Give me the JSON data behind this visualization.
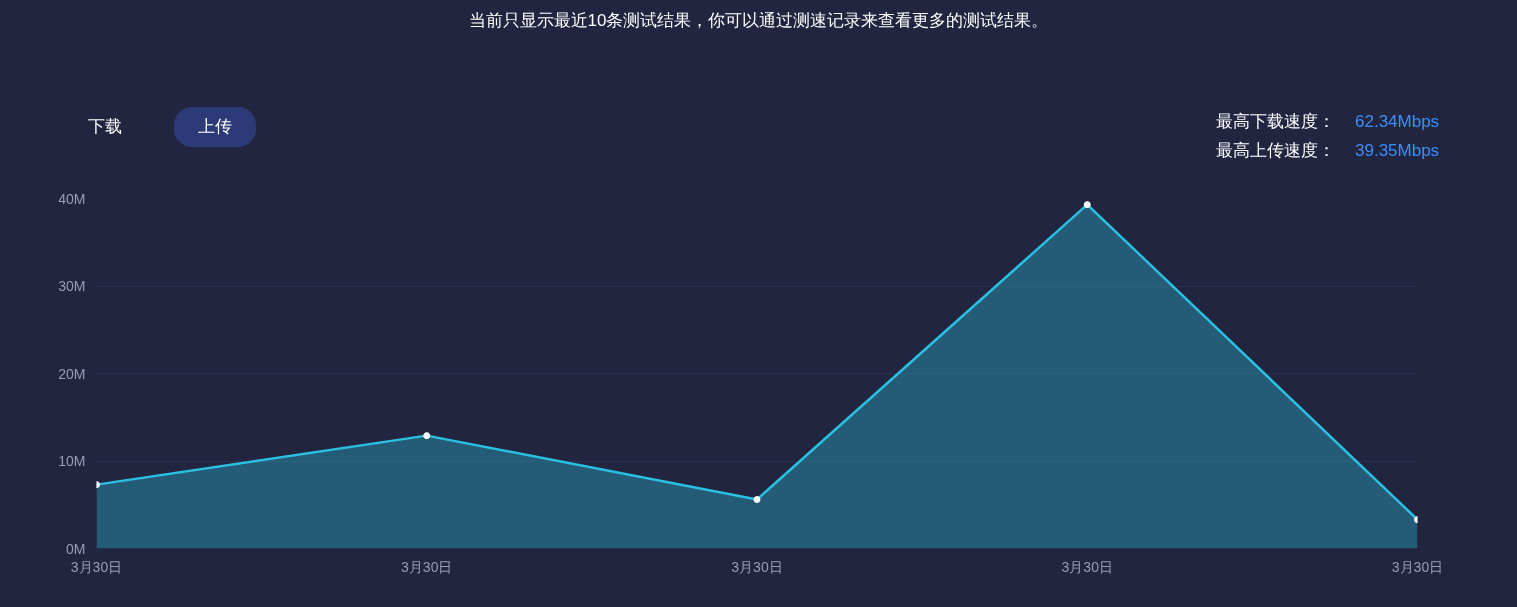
{
  "chart_data": {
    "type": "area",
    "title": "当前只显示最近10条测试结果，你可以通过测速记录来查看更多的测试结果。",
    "categories": [
      "3月30日",
      "3月30日",
      "3月30日",
      "3月30日",
      "3月30日"
    ],
    "values": [
      7.3,
      12.9,
      5.6,
      39.3,
      3.3
    ],
    "color": "#2bbfe0",
    "ylim": [
      0,
      40
    ],
    "yticks": [
      {
        "value": 0,
        "label": "0M"
      },
      {
        "value": 10,
        "label": "10M"
      },
      {
        "value": 20,
        "label": "20M"
      },
      {
        "value": 30,
        "label": "30M"
      },
      {
        "value": 40,
        "label": "40M"
      }
    ],
    "grid": "y",
    "marker": "circle",
    "annotations": [
      "下载",
      "上传",
      "最高下载速度：",
      "62.34Mbps",
      "最高上传速度：",
      "39.35Mbps"
    ]
  }
}
